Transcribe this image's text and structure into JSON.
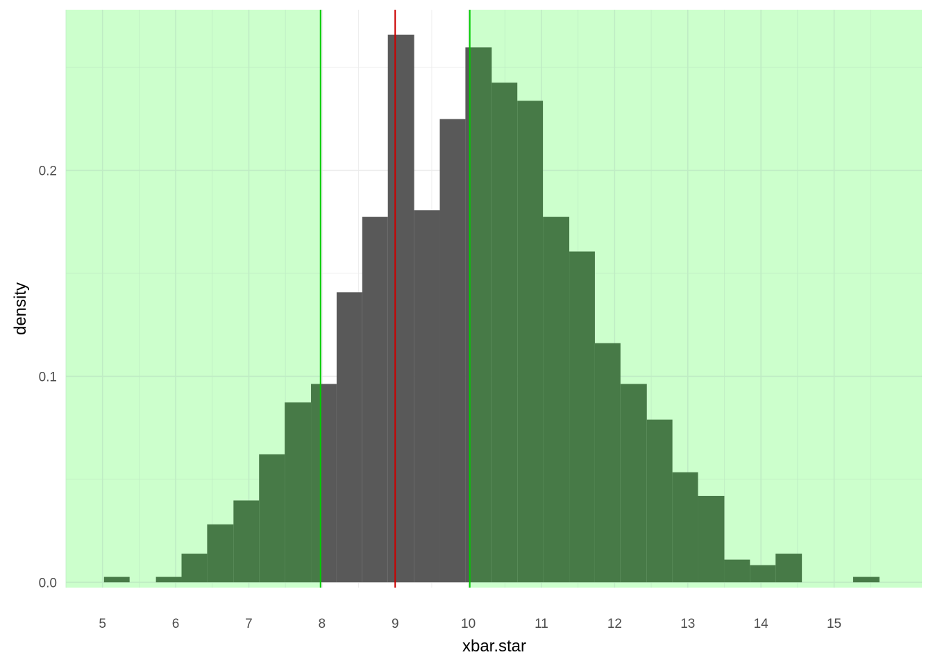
{
  "chart_data": {
    "type": "bar",
    "subtype": "histogram",
    "xlabel": "xbar.star",
    "ylabel": "density",
    "xlim": [
      4.5,
      16.2
    ],
    "ylim": [
      -0.0026,
      0.278
    ],
    "x_ticks": [
      5,
      6,
      7,
      8,
      9,
      10,
      11,
      12,
      13,
      14,
      15
    ],
    "x_tick_labels": [
      "5",
      "6",
      "7",
      "8",
      "9",
      "10",
      "11",
      "12",
      "13",
      "14",
      "15"
    ],
    "y_ticks": [
      0.0,
      0.1,
      0.2
    ],
    "y_tick_labels": [
      "0.0",
      "0.1",
      "0.2"
    ],
    "y_minor_ticks": [
      0.05,
      0.15,
      0.25
    ],
    "grid": true,
    "bin_width": 0.353,
    "bins": [
      {
        "x0": 5.02,
        "x1": 5.37,
        "density": 0.0026,
        "region": "outside"
      },
      {
        "x0": 5.37,
        "x1": 5.73,
        "density": 0.0,
        "region": "outside"
      },
      {
        "x0": 5.73,
        "x1": 6.08,
        "density": 0.0026,
        "region": "outside"
      },
      {
        "x0": 6.08,
        "x1": 6.43,
        "density": 0.0139,
        "region": "outside"
      },
      {
        "x0": 6.43,
        "x1": 6.79,
        "density": 0.0281,
        "region": "outside"
      },
      {
        "x0": 6.79,
        "x1": 7.14,
        "density": 0.0397,
        "region": "outside"
      },
      {
        "x0": 7.14,
        "x1": 7.49,
        "density": 0.0621,
        "region": "outside"
      },
      {
        "x0": 7.49,
        "x1": 7.85,
        "density": 0.0873,
        "region": "outside"
      },
      {
        "x0": 7.85,
        "x1": 8.2,
        "density": 0.0963,
        "region": "boundary"
      },
      {
        "x0": 8.2,
        "x1": 8.55,
        "density": 0.1408,
        "region": "inside"
      },
      {
        "x0": 8.55,
        "x1": 8.9,
        "density": 0.1774,
        "region": "inside"
      },
      {
        "x0": 8.9,
        "x1": 9.26,
        "density": 0.2659,
        "region": "inside"
      },
      {
        "x0": 9.26,
        "x1": 9.61,
        "density": 0.1806,
        "region": "inside"
      },
      {
        "x0": 9.61,
        "x1": 9.96,
        "density": 0.2249,
        "region": "inside"
      },
      {
        "x0": 9.96,
        "x1": 10.32,
        "density": 0.2597,
        "region": "boundary"
      },
      {
        "x0": 10.32,
        "x1": 10.67,
        "density": 0.2426,
        "region": "outside"
      },
      {
        "x0": 10.67,
        "x1": 11.02,
        "density": 0.2338,
        "region": "outside"
      },
      {
        "x0": 11.02,
        "x1": 11.38,
        "density": 0.1774,
        "region": "outside"
      },
      {
        "x0": 11.38,
        "x1": 11.73,
        "density": 0.1606,
        "region": "outside"
      },
      {
        "x0": 11.73,
        "x1": 12.08,
        "density": 0.1161,
        "region": "outside"
      },
      {
        "x0": 12.08,
        "x1": 12.44,
        "density": 0.0963,
        "region": "outside"
      },
      {
        "x0": 12.44,
        "x1": 12.79,
        "density": 0.079,
        "region": "outside"
      },
      {
        "x0": 12.79,
        "x1": 13.14,
        "density": 0.0534,
        "region": "outside"
      },
      {
        "x0": 13.14,
        "x1": 13.5,
        "density": 0.0419,
        "region": "outside"
      },
      {
        "x0": 13.5,
        "x1": 13.85,
        "density": 0.011,
        "region": "outside"
      },
      {
        "x0": 13.85,
        "x1": 14.2,
        "density": 0.0083,
        "region": "outside"
      },
      {
        "x0": 14.2,
        "x1": 14.56,
        "density": 0.0139,
        "region": "outside"
      },
      {
        "x0": 14.56,
        "x1": 14.91,
        "density": 0.0,
        "region": "outside"
      },
      {
        "x0": 14.91,
        "x1": 15.26,
        "density": 0.0,
        "region": "outside"
      },
      {
        "x0": 15.26,
        "x1": 15.62,
        "density": 0.0026,
        "region": "outside"
      }
    ],
    "vlines": [
      {
        "x": 7.98,
        "color": "#00cc00"
      },
      {
        "x": 9.0,
        "color": "#cc0000"
      },
      {
        "x": 10.02,
        "color": "#00cc00"
      }
    ],
    "shaded_regions": [
      {
        "x0": 4.5,
        "x1": 7.98,
        "color": "#ccffcc"
      },
      {
        "x0": 10.02,
        "x1": 16.2,
        "color": "#ccffcc"
      }
    ],
    "colors": {
      "bar_inside": "#595959",
      "bar_outside": "#477a47",
      "region_fill": "#ccffcc",
      "grid_on_white": "#ebebeb",
      "grid_on_green": "#bfecc4",
      "tick_text": "#4d4d4d",
      "title_text": "#000000"
    }
  }
}
